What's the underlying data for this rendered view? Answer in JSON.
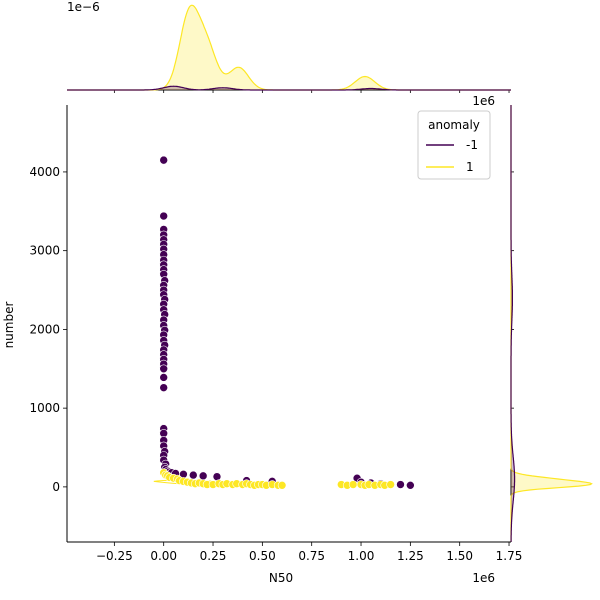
{
  "chart_data": {
    "type": "scatter",
    "subtype": "jointplot with marginal KDE",
    "xlabel": "N50",
    "ylabel": "number",
    "x_offset_label": "1e6",
    "top_marginal_offset_label": "1e−6",
    "right_marginal_offset_label": "1e6",
    "xlim": [
      -0.49,
      1.76
    ],
    "ylim": [
      -700,
      4850
    ],
    "x_ticks": [
      -0.25,
      0.0,
      0.25,
      0.5,
      0.75,
      1.0,
      1.25,
      1.5,
      1.75
    ],
    "x_tick_labels": [
      "−0.25",
      "0.00",
      "0.25",
      "0.50",
      "0.75",
      "1.00",
      "1.25",
      "1.50",
      "1.75"
    ],
    "y_ticks": [
      0,
      1000,
      2000,
      3000,
      4000
    ],
    "y_tick_labels": [
      "0",
      "1000",
      "2000",
      "3000",
      "4000"
    ],
    "grid": false,
    "legend": {
      "title": "anomaly",
      "placement": "top-right",
      "entries": [
        {
          "label": "-1",
          "color": "#440154"
        },
        {
          "label": "1",
          "color": "#fde725"
        }
      ]
    },
    "series": [
      {
        "name": "-1",
        "color": "#440154",
        "points": [
          [
            0.0,
            4150
          ],
          [
            0.0,
            3440
          ],
          [
            0.0,
            3270
          ],
          [
            0.0,
            3200
          ],
          [
            0.0,
            3140
          ],
          [
            0.0,
            3080
          ],
          [
            0.0,
            3020
          ],
          [
            0.0,
            2950
          ],
          [
            0.0,
            2880
          ],
          [
            0.0,
            2820
          ],
          [
            0.0,
            2760
          ],
          [
            0.0,
            2700
          ],
          [
            0.005,
            2620
          ],
          [
            0.0,
            2560
          ],
          [
            0.0,
            2500
          ],
          [
            0.0,
            2440
          ],
          [
            0.005,
            2380
          ],
          [
            0.0,
            2320
          ],
          [
            0.0,
            2250
          ],
          [
            0.005,
            2190
          ],
          [
            0.0,
            2120
          ],
          [
            0.0,
            2050
          ],
          [
            0.005,
            1990
          ],
          [
            0.0,
            1930
          ],
          [
            0.0,
            1860
          ],
          [
            0.005,
            1800
          ],
          [
            0.0,
            1740
          ],
          [
            0.0,
            1680
          ],
          [
            0.0,
            1620
          ],
          [
            0.0,
            1560
          ],
          [
            0.0,
            1500
          ],
          [
            0.0,
            1390
          ],
          [
            0.0,
            1260
          ],
          [
            0.0,
            740
          ],
          [
            0.0,
            680
          ],
          [
            0.0,
            590
          ],
          [
            0.0,
            520
          ],
          [
            0.005,
            450
          ],
          [
            0.0,
            400
          ],
          [
            0.0,
            340
          ],
          [
            0.01,
            290
          ],
          [
            0.005,
            250
          ],
          [
            0.01,
            220
          ],
          [
            0.02,
            200
          ],
          [
            0.03,
            190
          ],
          [
            0.04,
            180
          ],
          [
            0.06,
            170
          ],
          [
            0.1,
            160
          ],
          [
            0.15,
            150
          ],
          [
            0.2,
            140
          ],
          [
            0.27,
            130
          ],
          [
            0.42,
            80
          ],
          [
            0.55,
            70
          ],
          [
            0.98,
            110
          ],
          [
            1.0,
            60
          ],
          [
            1.05,
            50
          ],
          [
            1.1,
            40
          ],
          [
            1.2,
            30
          ],
          [
            1.25,
            20
          ]
        ]
      },
      {
        "name": "1",
        "color": "#fde725",
        "points": [
          [
            0.0,
            180
          ],
          [
            0.01,
            150
          ],
          [
            0.02,
            140
          ],
          [
            0.03,
            120
          ],
          [
            0.05,
            110
          ],
          [
            0.07,
            100
          ],
          [
            0.08,
            80
          ],
          [
            0.1,
            70
          ],
          [
            0.12,
            60
          ],
          [
            0.14,
            50
          ],
          [
            0.16,
            40
          ],
          [
            0.18,
            50
          ],
          [
            0.2,
            40
          ],
          [
            0.22,
            30
          ],
          [
            0.25,
            30
          ],
          [
            0.28,
            40
          ],
          [
            0.3,
            30
          ],
          [
            0.32,
            40
          ],
          [
            0.35,
            30
          ],
          [
            0.37,
            40
          ],
          [
            0.4,
            30
          ],
          [
            0.42,
            40
          ],
          [
            0.44,
            30
          ],
          [
            0.46,
            20
          ],
          [
            0.48,
            30
          ],
          [
            0.5,
            30
          ],
          [
            0.52,
            20
          ],
          [
            0.55,
            30
          ],
          [
            0.58,
            20
          ],
          [
            0.6,
            20
          ],
          [
            0.9,
            30
          ],
          [
            0.93,
            20
          ],
          [
            0.96,
            30
          ],
          [
            1.0,
            30
          ],
          [
            1.02,
            20
          ],
          [
            1.04,
            30
          ],
          [
            1.07,
            20
          ],
          [
            1.1,
            30
          ],
          [
            1.12,
            20
          ],
          [
            1.15,
            30
          ]
        ]
      }
    ],
    "marginal_x_kde": {
      "-1": {
        "color": "#440154",
        "peaks": [
          [
            0.05,
            0.05
          ],
          [
            0.3,
            0.03
          ],
          [
            1.05,
            0.02
          ]
        ]
      },
      "1": {
        "color": "#fde725",
        "peaks": [
          [
            0.13,
            1.0
          ],
          [
            0.22,
            0.55
          ],
          [
            0.38,
            0.3
          ],
          [
            1.02,
            0.18
          ]
        ]
      }
    },
    "marginal_y_kde": {
      "-1": {
        "color": "#440154",
        "peaks": [
          [
            100,
            0.05
          ],
          [
            2400,
            0.02
          ]
        ]
      },
      "1": {
        "color": "#fde725",
        "peaks": [
          [
            30,
            1.0
          ],
          [
            100,
            0.4
          ]
        ]
      }
    }
  }
}
